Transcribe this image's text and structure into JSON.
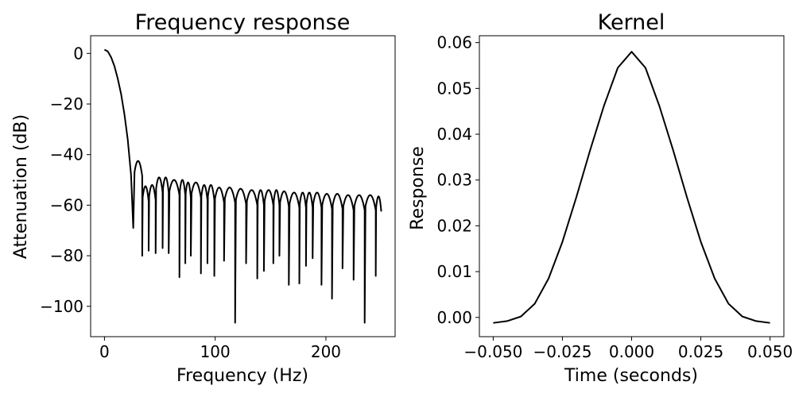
{
  "chart_data": [
    {
      "type": "line",
      "title": "Frequency response",
      "xlabel": "Frequency (Hz)",
      "ylabel": "Attenuation (dB)",
      "xlim": [
        -12.5,
        262.5
      ],
      "ylim": [
        -112,
        7
      ],
      "x_ticks": [
        0,
        100,
        200
      ],
      "x_tick_labels": [
        "0",
        "100",
        "200"
      ],
      "y_ticks": [
        0,
        -20,
        -40,
        -60,
        -80,
        -100
      ],
      "y_tick_labels": [
        "0",
        "−20",
        "−40",
        "−60",
        "−80",
        "−100"
      ],
      "grid": false,
      "legend": "none",
      "main_lobe": {
        "x": [
          0,
          3,
          6,
          9,
          12,
          15,
          18,
          21,
          24,
          26
        ],
        "y": [
          1.5,
          0.8,
          -1.5,
          -5,
          -10,
          -16,
          -24,
          -34,
          -48,
          -69
        ]
      },
      "sidelobes": [
        {
          "start": 26.6,
          "end": 34.1,
          "peak": -42.5,
          "null": -80
        },
        {
          "start": 34.1,
          "end": 39.9,
          "peak": -52.5,
          "null": -78
        },
        {
          "start": 39.9,
          "end": 46.2,
          "peak": -52.0,
          "null": -79
        },
        {
          "start": 46.2,
          "end": 52.5,
          "peak": -49.0,
          "null": -77
        },
        {
          "start": 52.5,
          "end": 58.0,
          "peak": -49.0,
          "null": -79
        },
        {
          "start": 58.0,
          "end": 67.7,
          "peak": -50.0,
          "null": -88.5
        },
        {
          "start": 67.7,
          "end": 73.0,
          "peak": -50.0,
          "null": -83
        },
        {
          "start": 73.0,
          "end": 78.0,
          "peak": -51.0,
          "null": -80
        },
        {
          "start": 78.0,
          "end": 87.1,
          "peak": -51.0,
          "null": -87
        },
        {
          "start": 87.1,
          "end": 93.0,
          "peak": -52.0,
          "null": -83
        },
        {
          "start": 93.0,
          "end": 99.2,
          "peak": -52.0,
          "null": -88
        },
        {
          "start": 99.2,
          "end": 108.0,
          "peak": -53.0,
          "null": -82
        },
        {
          "start": 108.0,
          "end": 118.0,
          "peak": -53.0,
          "null": -106.5
        },
        {
          "start": 118.0,
          "end": 127.9,
          "peak": -53.5,
          "null": -83
        },
        {
          "start": 127.9,
          "end": 138.0,
          "peak": -54.0,
          "null": -89
        },
        {
          "start": 138.0,
          "end": 144.0,
          "peak": -54.0,
          "null": -86
        },
        {
          "start": 144.0,
          "end": 152.5,
          "peak": -54.0,
          "null": -83
        },
        {
          "start": 152.5,
          "end": 158.0,
          "peak": -54.0,
          "null": -80
        },
        {
          "start": 158.0,
          "end": 166.5,
          "peak": -54.5,
          "null": -91.5
        },
        {
          "start": 166.5,
          "end": 176.0,
          "peak": -55.0,
          "null": -91
        },
        {
          "start": 176.0,
          "end": 182.0,
          "peak": -55.0,
          "null": -84
        },
        {
          "start": 182.0,
          "end": 188.0,
          "peak": -55.0,
          "null": -81
        },
        {
          "start": 188.0,
          "end": 196.0,
          "peak": -55.0,
          "null": -91.5
        },
        {
          "start": 196.0,
          "end": 205.5,
          "peak": -55.5,
          "null": -97
        },
        {
          "start": 205.5,
          "end": 215.0,
          "peak": -55.5,
          "null": -85
        },
        {
          "start": 215.0,
          "end": 225.0,
          "peak": -56.0,
          "null": -89.5
        },
        {
          "start": 225.0,
          "end": 235.0,
          "peak": -56.0,
          "null": -106.5
        },
        {
          "start": 235.0,
          "end": 245.0,
          "peak": -56.0,
          "null": -88
        },
        {
          "start": 245.0,
          "end": 250.0,
          "peak": -56.5,
          "null": null
        }
      ],
      "line_color": "#000000"
    },
    {
      "type": "line",
      "title": "Kernel",
      "xlabel": "Time (seconds)",
      "ylabel": "Response",
      "xlim": [
        -0.055,
        0.055
      ],
      "ylim": [
        -0.0042,
        0.0615
      ],
      "x_ticks": [
        -0.05,
        -0.025,
        0,
        0.025,
        0.05
      ],
      "x_tick_labels": [
        "−0.050",
        "−0.025",
        "0.000",
        "0.025",
        "0.050"
      ],
      "y_ticks": [
        0,
        0.01,
        0.02,
        0.03,
        0.04,
        0.05,
        0.06
      ],
      "y_tick_labels": [
        "0.00",
        "0.01",
        "0.02",
        "0.03",
        "0.04",
        "0.05",
        "0.06"
      ],
      "grid": false,
      "legend": "none",
      "x": [
        -0.05,
        -0.045,
        -0.04,
        -0.035,
        -0.03,
        -0.025,
        -0.02,
        -0.015,
        -0.01,
        -0.005,
        0,
        0.005,
        0.01,
        0.015,
        0.02,
        0.025,
        0.03,
        0.035,
        0.04,
        0.045,
        0.05
      ],
      "y": [
        -0.0012,
        -0.0008,
        0.0002,
        0.003,
        0.0085,
        0.0165,
        0.0262,
        0.0365,
        0.0462,
        0.0545,
        0.058,
        0.0545,
        0.0462,
        0.0365,
        0.0262,
        0.0165,
        0.0085,
        0.003,
        0.0002,
        -0.0008,
        -0.0012
      ],
      "line_color": "#000000"
    }
  ]
}
